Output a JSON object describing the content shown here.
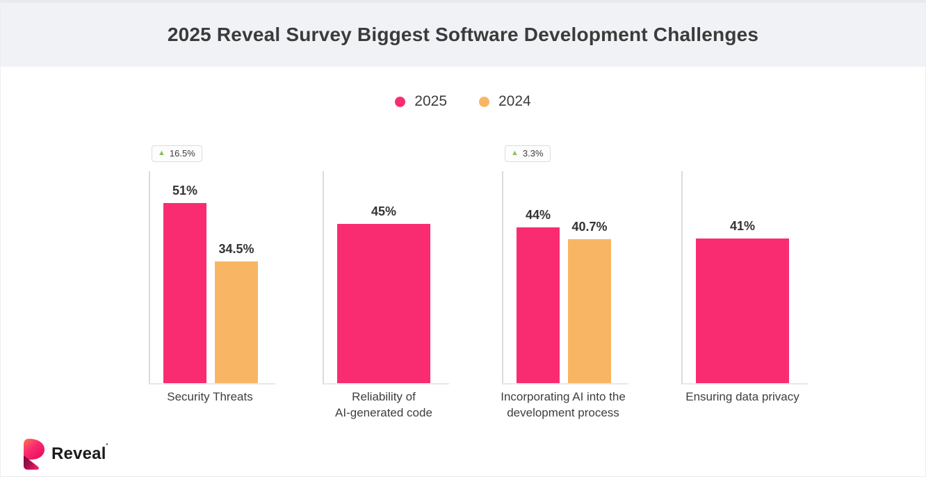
{
  "header": {
    "title": "2025 Reveal Survey Biggest Software Development Challenges"
  },
  "legend": [
    {
      "label": "2025",
      "color": "#f92c71"
    },
    {
      "label": "2024",
      "color": "#f8b664"
    }
  ],
  "chart_data": {
    "type": "bar",
    "title": "2025 Reveal Survey Biggest Software Development Challenges",
    "xlabel": "",
    "ylabel": "",
    "ylim": [
      0,
      60
    ],
    "grid": false,
    "legend_position": "top-center",
    "categories": [
      "Security Threats",
      "Reliability of AI-generated code",
      "Incorporating AI into the development process",
      "Ensuring data privacy"
    ],
    "series": [
      {
        "name": "2025",
        "color": "#f92c71",
        "values": [
          51,
          45,
          44,
          41
        ]
      },
      {
        "name": "2024",
        "color": "#f8b664",
        "values": [
          34.5,
          null,
          40.7,
          null
        ]
      }
    ],
    "groups": [
      {
        "badge": {
          "icon": "triangle-up",
          "color": "#8cc152",
          "text": "16.5%"
        },
        "bars": [
          {
            "series": "2025",
            "value": 51,
            "label": "51%",
            "color": "#f92c71"
          },
          {
            "series": "2024",
            "value": 34.5,
            "label": "34.5%",
            "color": "#f8b664"
          }
        ],
        "category_lines": [
          "Security Threats"
        ]
      },
      {
        "badge": null,
        "bars": [
          {
            "series": "2025",
            "value": 45,
            "label": "45%",
            "color": "#f92c71"
          }
        ],
        "category_lines": [
          "Reliability of",
          "AI-generated code"
        ]
      },
      {
        "badge": {
          "icon": "triangle-up",
          "color": "#8cc152",
          "text": "3.3%"
        },
        "bars": [
          {
            "series": "2025",
            "value": 44,
            "label": "44%",
            "color": "#f92c71"
          },
          {
            "series": "2024",
            "value": 40.7,
            "label": "40.7%",
            "color": "#f8b664"
          }
        ],
        "category_lines": [
          "Incorporating AI into the",
          "development process"
        ]
      },
      {
        "badge": null,
        "bars": [
          {
            "series": "2025",
            "value": 41,
            "label": "41%",
            "color": "#f92c71"
          }
        ],
        "category_lines": [
          "Ensuring data privacy"
        ]
      }
    ]
  },
  "footer": {
    "logo_text": "Reveal",
    "trademark": "'"
  },
  "colors": {
    "accent_pink": "#f92c71",
    "accent_orange": "#f8b664",
    "badge_green": "#8cc152",
    "header_bg": "#f1f2f6",
    "axis_line": "#dbdbdb",
    "baseline": "#e8e8e8",
    "text_dark": "#3b3b3b"
  }
}
